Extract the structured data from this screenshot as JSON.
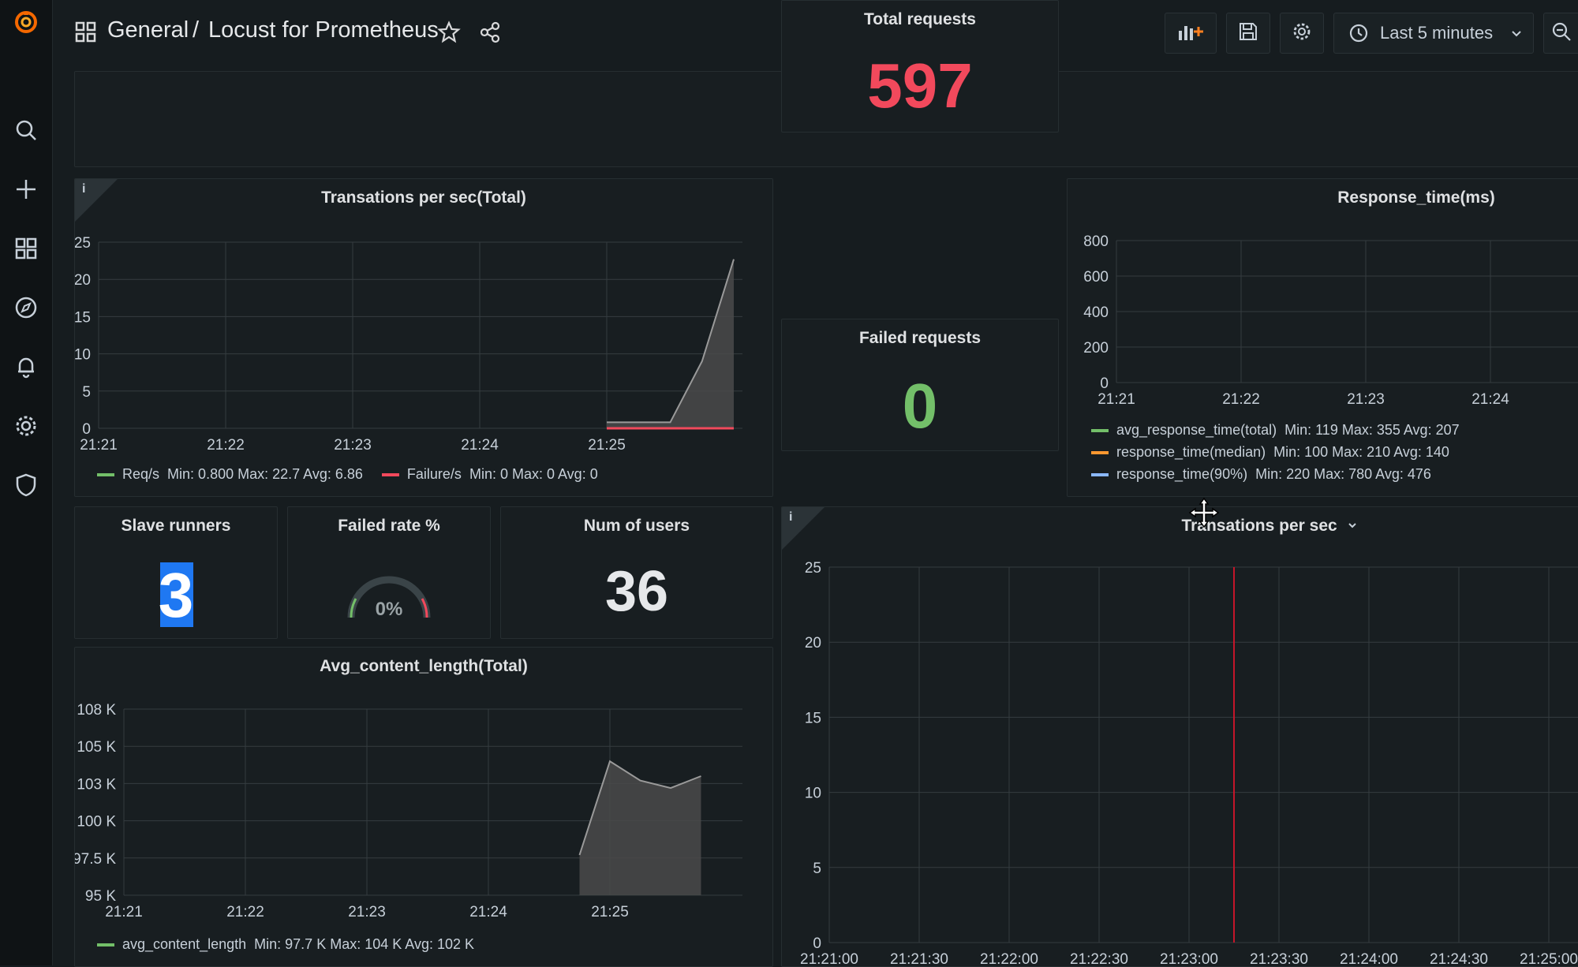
{
  "breadcrumb": {
    "folder": "General",
    "separator": "/",
    "dashboard": "Locust for Prometheus"
  },
  "time_picker": {
    "label": "Last 5 minutes"
  },
  "panels": {
    "tps_total": {
      "title": "Transations per sec(Total)",
      "legend": [
        {
          "name": "Req/s",
          "stats": "Min: 0.800  Max: 22.7  Avg: 6.86",
          "color": "#73bf69"
        },
        {
          "name": "Failure/s",
          "stats": "Min: 0  Max: 0  Avg: 0",
          "color": "#f2495c"
        }
      ]
    },
    "total_requests": {
      "title": "Total requests",
      "value": "597",
      "color": "#f2495c"
    },
    "failed_requests": {
      "title": "Failed requests",
      "value": "0",
      "color": "#73bf69"
    },
    "response_time": {
      "title": "Response_time(ms)",
      "legend": [
        {
          "name": "avg_response_time(total)",
          "stats": "Min: 119  Max: 355  Avg: 207",
          "color": "#73bf69"
        },
        {
          "name": "response_time(median)",
          "stats": "Min: 100  Max: 210  Avg: 140",
          "color": "#ff9830"
        },
        {
          "name": "response_time(90%)",
          "stats": "Min: 220  Max: 780  Avg: 476",
          "color": "#8ab8ff"
        }
      ]
    },
    "slave_runners": {
      "title": "Slave runners",
      "value": "3"
    },
    "failed_rate": {
      "title": "Failed rate %",
      "value": "0%",
      "fraction": 0
    },
    "num_users": {
      "title": "Num of users",
      "value": "36"
    },
    "avg_content": {
      "title": "Avg_content_length(Total)",
      "legend": [
        {
          "name": "avg_content_length",
          "stats": "Min: 97.7 K  Max: 104 K  Avg: 102 K",
          "color": "#73bf69"
        }
      ]
    },
    "tps": {
      "title": "Transations per sec"
    }
  },
  "chart_data": [
    {
      "id": "tps_total",
      "type": "area",
      "x_ticks": [
        "21:21",
        "21:22",
        "21:23",
        "21:24",
        "21:25"
      ],
      "y_ticks": [
        "0",
        "5",
        "10",
        "15",
        "20",
        "25"
      ],
      "ylim": [
        0,
        25
      ],
      "grid": true,
      "series": [
        {
          "name": "Req/s",
          "x": [
            "21:25:00",
            "21:25:30",
            "21:25:45",
            "21:26:00"
          ],
          "values": [
            0.8,
            0.8,
            9,
            22.7
          ]
        },
        {
          "name": "Failure/s",
          "x": [
            "21:25:00",
            "21:26:00"
          ],
          "values": [
            0,
            0
          ]
        }
      ]
    },
    {
      "id": "response_time",
      "type": "line",
      "x_ticks": [
        "21:21",
        "21:22",
        "21:23",
        "21:24"
      ],
      "y_ticks": [
        "0",
        "200",
        "400",
        "600",
        "800"
      ],
      "ylim": [
        0,
        800
      ],
      "grid": true,
      "series": [
        {
          "name": "avg_response_time(total)",
          "values": []
        },
        {
          "name": "response_time(median)",
          "values": []
        },
        {
          "name": "response_time(90%)",
          "values": []
        }
      ]
    },
    {
      "id": "avg_content",
      "type": "area",
      "x_ticks": [
        "21:21",
        "21:22",
        "21:23",
        "21:24",
        "21:25"
      ],
      "y_ticks": [
        "95 K",
        "97.5 K",
        "100 K",
        "103 K",
        "105 K",
        "108 K"
      ],
      "ylim": [
        95000,
        107500
      ],
      "grid": true,
      "series": [
        {
          "name": "avg_content_length",
          "x": [
            "21:24:45",
            "21:25:00",
            "21:25:15",
            "21:25:30",
            "21:25:45"
          ],
          "values": [
            97700,
            104000,
            102700,
            102200,
            103000
          ]
        }
      ]
    },
    {
      "id": "tps",
      "type": "line",
      "x_ticks": [
        "21:21:00",
        "21:21:30",
        "21:22:00",
        "21:22:30",
        "21:23:00",
        "21:23:30",
        "21:24:00",
        "21:24:30",
        "21:25:00"
      ],
      "y_ticks": [
        "0",
        "5",
        "10",
        "15",
        "20",
        "25"
      ],
      "ylim": [
        0,
        25
      ],
      "grid": true,
      "annotation": "21:23:15",
      "series": []
    }
  ]
}
